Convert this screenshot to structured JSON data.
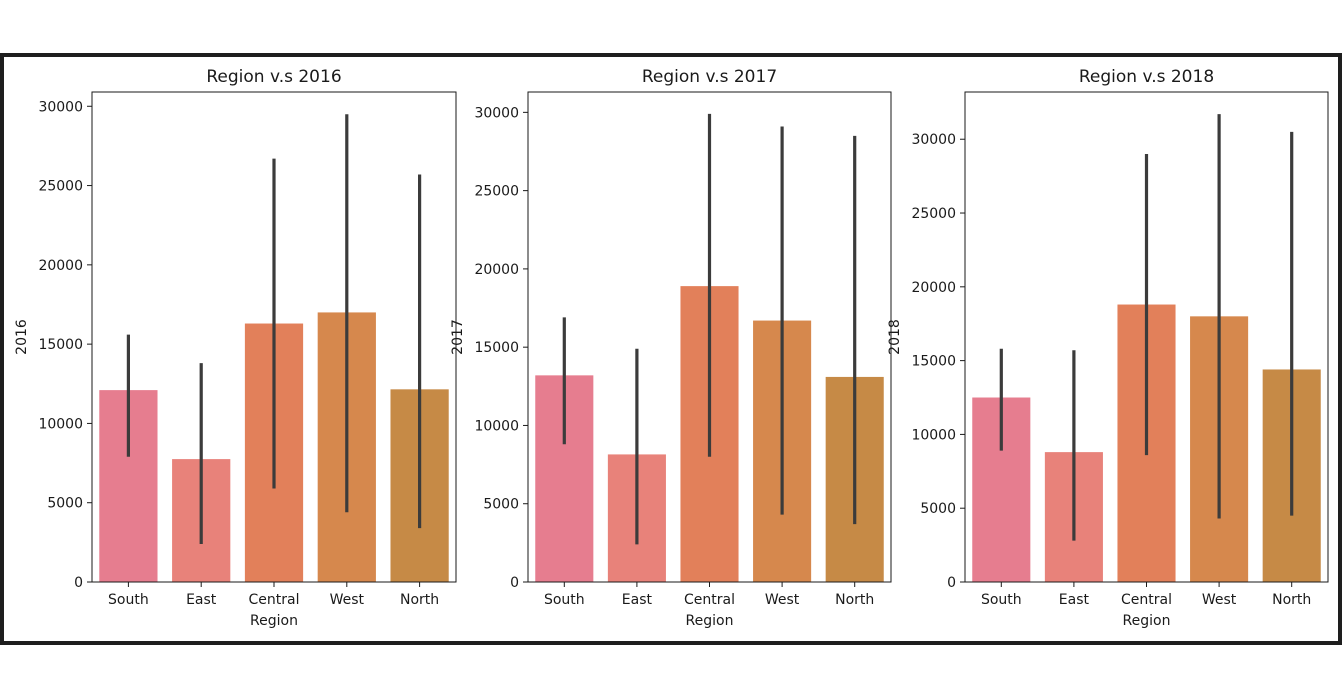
{
  "colors": {
    "South": "#e67d8f",
    "East": "#e8827a",
    "Central": "#e2805a",
    "West": "#d6884d",
    "North": "#c68a46",
    "error_bar": "#3b3b3b",
    "axes": "#1a1a1a",
    "frame": "#1e1e1e"
  },
  "chart_data": [
    {
      "type": "bar",
      "title": "Region v.s 2016",
      "xlabel": "Region",
      "ylabel": "2016",
      "categories": [
        "South",
        "East",
        "Central",
        "West",
        "North"
      ],
      "values": [
        12100,
        7750,
        16300,
        17000,
        12150
      ],
      "ci_low": [
        7900,
        2400,
        5900,
        4400,
        3400
      ],
      "ci_high": [
        15600,
        13800,
        26700,
        29500,
        25700
      ],
      "ylim": [
        0,
        30900
      ],
      "yticks": [
        0,
        5000,
        10000,
        15000,
        20000,
        25000,
        30000
      ],
      "ytick_labels": [
        "0",
        "5000",
        "10000",
        "15000",
        "20000",
        "25000",
        "30000"
      ]
    },
    {
      "type": "bar",
      "title": "Region v.s 2017",
      "xlabel": "Region",
      "ylabel": "2017",
      "categories": [
        "South",
        "East",
        "Central",
        "West",
        "North"
      ],
      "values": [
        13200,
        8150,
        18900,
        16700,
        13100
      ],
      "ci_low": [
        8800,
        2400,
        8000,
        4300,
        3700
      ],
      "ci_high": [
        16900,
        14900,
        29900,
        29100,
        28500
      ],
      "ylim": [
        0,
        31300
      ],
      "yticks": [
        0,
        5000,
        10000,
        15000,
        20000,
        25000,
        30000
      ],
      "ytick_labels": [
        "0",
        "5000",
        "10000",
        "15000",
        "20000",
        "25000",
        "30000"
      ]
    },
    {
      "type": "bar",
      "title": "Region v.s 2018",
      "xlabel": "Region",
      "ylabel": "2018",
      "categories": [
        "South",
        "East",
        "Central",
        "West",
        "North"
      ],
      "values": [
        12500,
        8800,
        18800,
        18000,
        14400
      ],
      "ci_low": [
        8900,
        2800,
        8600,
        4300,
        4500
      ],
      "ci_high": [
        15800,
        15700,
        29000,
        31700,
        30500
      ],
      "ylim": [
        0,
        33200
      ],
      "yticks": [
        0,
        5000,
        10000,
        15000,
        20000,
        25000,
        30000
      ],
      "ytick_labels": [
        "0",
        "5000",
        "10000",
        "15000",
        "20000",
        "25000",
        "30000"
      ]
    }
  ]
}
